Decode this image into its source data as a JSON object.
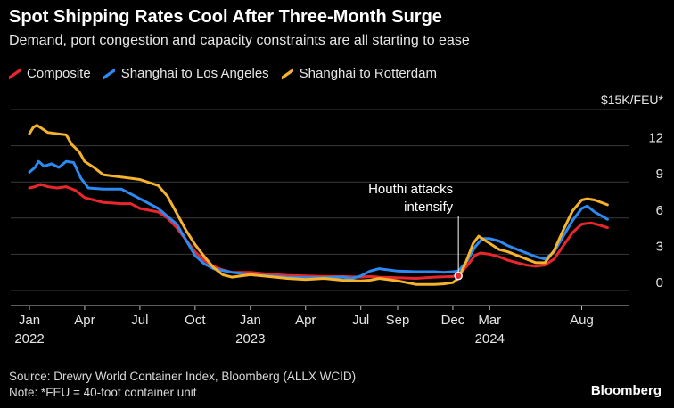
{
  "chart_data": {
    "type": "line",
    "title": "Spot Shipping Rates Cool After Three-Month Surge",
    "subtitle": "Demand, port congestion and capacity constraints are all starting to ease",
    "ylabel": "$15K/FEU*",
    "ylim": [
      0,
      15
    ],
    "yticks": [
      0,
      3,
      6,
      9,
      12
    ],
    "grid": true,
    "legend_position": "top-left",
    "x_range": [
      0,
      31.5
    ],
    "x_ticks": [
      {
        "x": 0,
        "month": "Jan",
        "year": "2022"
      },
      {
        "x": 3,
        "month": "Apr",
        "year": ""
      },
      {
        "x": 6,
        "month": "Jul",
        "year": ""
      },
      {
        "x": 9,
        "month": "Oct",
        "year": ""
      },
      {
        "x": 12,
        "month": "Jan",
        "year": "2023"
      },
      {
        "x": 15,
        "month": "Apr",
        "year": ""
      },
      {
        "x": 18,
        "month": "Jul",
        "year": ""
      },
      {
        "x": 20,
        "month": "Sep",
        "year": ""
      },
      {
        "x": 23,
        "month": "Dec",
        "year": ""
      },
      {
        "x": 25,
        "month": "Mar",
        "year": "2024"
      },
      {
        "x": 30,
        "month": "Aug",
        "year": ""
      }
    ],
    "series": [
      {
        "name": "Composite",
        "color": "#e8262b",
        "points": [
          [
            0,
            8.5
          ],
          [
            0.3,
            8.6
          ],
          [
            0.6,
            8.8
          ],
          [
            1,
            8.6
          ],
          [
            1.5,
            8.5
          ],
          [
            2,
            8.6
          ],
          [
            2.5,
            8.3
          ],
          [
            3,
            7.7
          ],
          [
            3.5,
            7.5
          ],
          [
            4,
            7.3
          ],
          [
            5,
            7.2
          ],
          [
            5.5,
            7.2
          ],
          [
            6,
            6.8
          ],
          [
            7,
            6.5
          ],
          [
            7.5,
            6
          ],
          [
            8,
            5.2
          ],
          [
            8.5,
            4.2
          ],
          [
            9,
            3.2
          ],
          [
            9.5,
            2.5
          ],
          [
            10,
            2.0
          ],
          [
            10.5,
            1.7
          ],
          [
            11,
            1.5
          ],
          [
            12,
            1.5
          ],
          [
            13,
            1.35
          ],
          [
            14,
            1.25
          ],
          [
            15,
            1.2
          ],
          [
            16,
            1.15
          ],
          [
            17,
            1.15
          ],
          [
            18,
            1.1
          ],
          [
            18.5,
            1.15
          ],
          [
            19,
            1.1
          ],
          [
            20,
            1.05
          ],
          [
            21,
            1.0
          ],
          [
            22,
            1.1
          ],
          [
            23,
            1.15
          ],
          [
            23.4,
            1.4
          ],
          [
            23.8,
            2.1
          ],
          [
            24.2,
            2.9
          ],
          [
            24.5,
            3.1
          ],
          [
            25,
            3.0
          ],
          [
            25.5,
            2.8
          ],
          [
            26,
            2.5
          ],
          [
            26.5,
            2.3
          ],
          [
            27,
            2.1
          ],
          [
            27.5,
            2.0
          ],
          [
            28,
            2.1
          ],
          [
            28.5,
            2.6
          ],
          [
            29,
            3.7
          ],
          [
            29.5,
            4.8
          ],
          [
            30,
            5.5
          ],
          [
            30.5,
            5.6
          ],
          [
            31,
            5.4
          ],
          [
            31.4,
            5.2
          ]
        ]
      },
      {
        "name": "Shanghai to Los Angeles",
        "color": "#2b8bf2",
        "points": [
          [
            0,
            9.8
          ],
          [
            0.3,
            10.2
          ],
          [
            0.5,
            10.7
          ],
          [
            0.8,
            10.3
          ],
          [
            1.2,
            10.5
          ],
          [
            1.6,
            10.2
          ],
          [
            2,
            10.7
          ],
          [
            2.4,
            10.6
          ],
          [
            2.8,
            9.3
          ],
          [
            3.2,
            8.5
          ],
          [
            4,
            8.4
          ],
          [
            4.5,
            8.4
          ],
          [
            5,
            8.4
          ],
          [
            6,
            7.6
          ],
          [
            7,
            6.8
          ],
          [
            8,
            5.5
          ],
          [
            8.5,
            4.2
          ],
          [
            9,
            2.9
          ],
          [
            9.5,
            2.2
          ],
          [
            10,
            1.8
          ],
          [
            11,
            1.5
          ],
          [
            12,
            1.3
          ],
          [
            13,
            1.2
          ],
          [
            14,
            1.1
          ],
          [
            15,
            1.05
          ],
          [
            16,
            1.05
          ],
          [
            17,
            1.1
          ],
          [
            17.5,
            1.0
          ],
          [
            18,
            1.2
          ],
          [
            18.5,
            1.6
          ],
          [
            19,
            1.8
          ],
          [
            20,
            1.6
          ],
          [
            21,
            1.55
          ],
          [
            22,
            1.55
          ],
          [
            22.5,
            1.5
          ],
          [
            23,
            1.55
          ],
          [
            23.3,
            1.6
          ],
          [
            23.8,
            2.5
          ],
          [
            24.2,
            3.6
          ],
          [
            24.6,
            4.3
          ],
          [
            25,
            4.3
          ],
          [
            25.5,
            4.1
          ],
          [
            26,
            3.7
          ],
          [
            26.5,
            3.4
          ],
          [
            27,
            3.1
          ],
          [
            27.5,
            2.8
          ],
          [
            28,
            2.6
          ],
          [
            28.5,
            3.2
          ],
          [
            29,
            4.5
          ],
          [
            29.5,
            5.8
          ],
          [
            30,
            6.8
          ],
          [
            30.3,
            7.0
          ],
          [
            30.7,
            6.5
          ],
          [
            31.4,
            5.9
          ]
        ]
      },
      {
        "name": "Shanghai to Rotterdam",
        "color": "#f5b22b",
        "points": [
          [
            0,
            13
          ],
          [
            0.2,
            13.5
          ],
          [
            0.4,
            13.7
          ],
          [
            0.6,
            13.5
          ],
          [
            1,
            13.1
          ],
          [
            1.5,
            13.0
          ],
          [
            2,
            12.9
          ],
          [
            2.3,
            12.1
          ],
          [
            2.7,
            11.5
          ],
          [
            3,
            10.7
          ],
          [
            3.5,
            10.2
          ],
          [
            4,
            9.6
          ],
          [
            5,
            9.4
          ],
          [
            5.5,
            9.3
          ],
          [
            6,
            9.2
          ],
          [
            7,
            8.7
          ],
          [
            7.5,
            7.8
          ],
          [
            8,
            6.4
          ],
          [
            8.5,
            5.0
          ],
          [
            9,
            3.8
          ],
          [
            9.5,
            2.8
          ],
          [
            10,
            1.9
          ],
          [
            10.5,
            1.3
          ],
          [
            11,
            1.1
          ],
          [
            12,
            1.3
          ],
          [
            13,
            1.15
          ],
          [
            14,
            1.0
          ],
          [
            15,
            0.9
          ],
          [
            16,
            1.0
          ],
          [
            17,
            0.85
          ],
          [
            18,
            0.8
          ],
          [
            18.5,
            0.85
          ],
          [
            19,
            1.0
          ],
          [
            20,
            0.8
          ],
          [
            21,
            0.5
          ],
          [
            22,
            0.5
          ],
          [
            22.5,
            0.55
          ],
          [
            23,
            0.65
          ],
          [
            23.3,
            1.0
          ],
          [
            23.7,
            2.3
          ],
          [
            24.1,
            3.9
          ],
          [
            24.4,
            4.5
          ],
          [
            24.8,
            4.1
          ],
          [
            25.2,
            3.7
          ],
          [
            25.5,
            3.4
          ],
          [
            26,
            3.2
          ],
          [
            26.5,
            2.9
          ],
          [
            27,
            2.6
          ],
          [
            27.5,
            2.3
          ],
          [
            28,
            2.3
          ],
          [
            28.5,
            3.3
          ],
          [
            29,
            5.0
          ],
          [
            29.5,
            6.6
          ],
          [
            30,
            7.5
          ],
          [
            30.3,
            7.6
          ],
          [
            30.7,
            7.5
          ],
          [
            31.4,
            7.1
          ]
        ]
      }
    ],
    "annotation": {
      "text_line1": "Houthi attacks",
      "text_line2": "intensify",
      "x": 23.3,
      "y": 1.2
    }
  },
  "footer": {
    "source": "Source: Drewry World Container Index, Bloomberg (ALLX WCID)",
    "note": "Note: *FEU = 40-foot container unit"
  },
  "brand": "Bloomberg"
}
